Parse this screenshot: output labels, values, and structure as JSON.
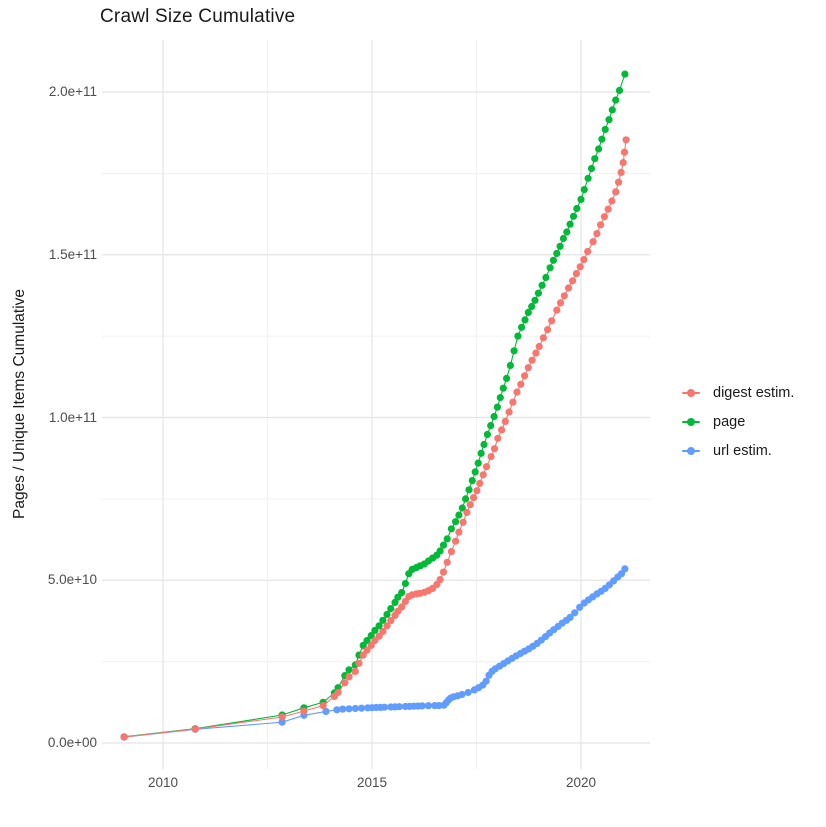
{
  "chart_data": {
    "type": "line",
    "title": "Crawl Size Cumulative",
    "xlabel": "",
    "ylabel": "Pages / Unique Items Cumulative",
    "grid": true,
    "legend_position": "right",
    "x_axis": {
      "lim": [
        2008.54,
        2021.65
      ],
      "minor_ticks": [
        2012.5,
        2017.5
      ]
    },
    "y_axis": {
      "lim_billions": [
        -8,
        216
      ],
      "unit": "1e9",
      "minor_ticks_billions": [
        25,
        75,
        125,
        175
      ]
    },
    "x_ticks": [
      {
        "value": 2010,
        "label": "2010"
      },
      {
        "value": 2015,
        "label": "2015"
      },
      {
        "value": 2020,
        "label": "2020"
      }
    ],
    "y_ticks": [
      {
        "value_billions": 0,
        "label": "0.0e+00"
      },
      {
        "value_billions": 50,
        "label": "5.0e+10"
      },
      {
        "value_billions": 100,
        "label": "1.0e+11"
      },
      {
        "value_billions": 150,
        "label": "1.5e+11"
      },
      {
        "value_billions": 200,
        "label": "2.0e+11"
      }
    ],
    "series": [
      {
        "name": "digest estim.",
        "color": "#F8766D",
        "points_year_billions": [
          [
            2009.07,
            1.85
          ],
          [
            2010.77,
            4.3
          ],
          [
            2012.85,
            8.0
          ],
          [
            2013.37,
            9.8
          ],
          [
            2013.83,
            11.5
          ],
          [
            2014.1,
            14.3
          ],
          [
            2014.19,
            15.5
          ],
          [
            2014.35,
            18.5
          ],
          [
            2014.45,
            20.3
          ],
          [
            2014.6,
            22.0
          ],
          [
            2014.69,
            24.5
          ],
          [
            2014.79,
            27.0
          ],
          [
            2014.88,
            28.5
          ],
          [
            2014.98,
            30.0
          ],
          [
            2015.07,
            31.5
          ],
          [
            2015.17,
            32.8
          ],
          [
            2015.26,
            34.3
          ],
          [
            2015.36,
            36.0
          ],
          [
            2015.45,
            37.6
          ],
          [
            2015.55,
            39.2
          ],
          [
            2015.62,
            40.5
          ],
          [
            2015.71,
            41.8
          ],
          [
            2015.8,
            43.5
          ],
          [
            2015.88,
            45.0
          ],
          [
            2015.96,
            45.5
          ],
          [
            2016.06,
            45.8
          ],
          [
            2016.15,
            46.0
          ],
          [
            2016.25,
            46.3
          ],
          [
            2016.35,
            46.8
          ],
          [
            2016.45,
            47.5
          ],
          [
            2016.55,
            48.7
          ],
          [
            2016.63,
            50.2
          ],
          [
            2016.71,
            52.5
          ],
          [
            2016.8,
            55.5
          ],
          [
            2016.9,
            58.8
          ],
          [
            2017.0,
            62.0
          ],
          [
            2017.08,
            64.8
          ],
          [
            2017.18,
            67.8
          ],
          [
            2017.27,
            70.8
          ],
          [
            2017.35,
            73.2
          ],
          [
            2017.43,
            75.4
          ],
          [
            2017.51,
            77.5
          ],
          [
            2017.58,
            79.8
          ],
          [
            2017.66,
            82.4
          ],
          [
            2017.74,
            84.9
          ],
          [
            2017.85,
            88.0
          ],
          [
            2017.93,
            90.4
          ],
          [
            2018.01,
            93.6
          ],
          [
            2018.1,
            96.2
          ],
          [
            2018.19,
            98.8
          ],
          [
            2018.28,
            101.7
          ],
          [
            2018.37,
            104.7
          ],
          [
            2018.47,
            107.8
          ],
          [
            2018.56,
            110.2
          ],
          [
            2018.65,
            112.8
          ],
          [
            2018.74,
            115.3
          ],
          [
            2018.83,
            117.6
          ],
          [
            2018.92,
            119.8
          ],
          [
            2019.0,
            121.8
          ],
          [
            2019.1,
            124.5
          ],
          [
            2019.2,
            127.0
          ],
          [
            2019.3,
            129.7
          ],
          [
            2019.42,
            133.0
          ],
          [
            2019.51,
            135.2
          ],
          [
            2019.6,
            137.4
          ],
          [
            2019.7,
            139.8
          ],
          [
            2019.8,
            142.0
          ],
          [
            2019.89,
            144.2
          ],
          [
            2019.98,
            146.3
          ],
          [
            2020.07,
            148.5
          ],
          [
            2020.16,
            151.0
          ],
          [
            2020.29,
            154.0
          ],
          [
            2020.38,
            156.5
          ],
          [
            2020.47,
            159.2
          ],
          [
            2020.56,
            161.7
          ],
          [
            2020.65,
            164.0
          ],
          [
            2020.74,
            166.5
          ],
          [
            2020.83,
            169.3
          ],
          [
            2020.9,
            172.3
          ],
          [
            2020.96,
            175.3
          ],
          [
            2021.01,
            178.3
          ],
          [
            2021.04,
            181.5
          ],
          [
            2021.08,
            185.3
          ]
        ]
      },
      {
        "name": "page",
        "color": "#00BA38",
        "points_year_billions": [
          [
            2009.07,
            1.9
          ],
          [
            2010.77,
            4.4
          ],
          [
            2012.85,
            8.6
          ],
          [
            2013.37,
            10.8
          ],
          [
            2013.83,
            12.5
          ],
          [
            2014.1,
            15.4
          ],
          [
            2014.19,
            17.0
          ],
          [
            2014.35,
            20.7
          ],
          [
            2014.45,
            22.5
          ],
          [
            2014.6,
            24.0
          ],
          [
            2014.69,
            27.0
          ],
          [
            2014.79,
            30.0
          ],
          [
            2014.88,
            31.5
          ],
          [
            2014.98,
            33.0
          ],
          [
            2015.07,
            34.6
          ],
          [
            2015.17,
            36.0
          ],
          [
            2015.26,
            37.7
          ],
          [
            2015.36,
            39.5
          ],
          [
            2015.45,
            41.3
          ],
          [
            2015.55,
            43.2
          ],
          [
            2015.62,
            44.8
          ],
          [
            2015.71,
            46.2
          ],
          [
            2015.8,
            49.0
          ],
          [
            2015.88,
            52.0
          ],
          [
            2015.96,
            53.3
          ],
          [
            2016.06,
            53.9
          ],
          [
            2016.15,
            54.4
          ],
          [
            2016.25,
            55.0
          ],
          [
            2016.35,
            55.9
          ],
          [
            2016.45,
            56.8
          ],
          [
            2016.55,
            57.7
          ],
          [
            2016.63,
            59.0
          ],
          [
            2016.71,
            60.8
          ],
          [
            2016.8,
            62.7
          ],
          [
            2016.9,
            65.8
          ],
          [
            2017.0,
            68.0
          ],
          [
            2017.08,
            70.0
          ],
          [
            2017.16,
            72.2
          ],
          [
            2017.24,
            75.0
          ],
          [
            2017.32,
            77.8
          ],
          [
            2017.4,
            80.6
          ],
          [
            2017.47,
            83.3
          ],
          [
            2017.54,
            86.0
          ],
          [
            2017.61,
            89.0
          ],
          [
            2017.68,
            91.7
          ],
          [
            2017.76,
            94.8
          ],
          [
            2017.84,
            97.5
          ],
          [
            2017.92,
            100.3
          ],
          [
            2018.0,
            103.2
          ],
          [
            2018.07,
            106.1
          ],
          [
            2018.14,
            109.0
          ],
          [
            2018.22,
            112.0
          ],
          [
            2018.31,
            116.0
          ],
          [
            2018.4,
            120.5
          ],
          [
            2018.49,
            125.0
          ],
          [
            2018.58,
            127.7
          ],
          [
            2018.66,
            130.0
          ],
          [
            2018.74,
            132.3
          ],
          [
            2018.82,
            134.1
          ],
          [
            2018.9,
            136.0
          ],
          [
            2018.98,
            138.2
          ],
          [
            2019.07,
            140.6
          ],
          [
            2019.16,
            143.0
          ],
          [
            2019.26,
            146.0
          ],
          [
            2019.34,
            148.3
          ],
          [
            2019.42,
            150.4
          ],
          [
            2019.5,
            152.6
          ],
          [
            2019.58,
            155.0
          ],
          [
            2019.66,
            157.0
          ],
          [
            2019.74,
            159.4
          ],
          [
            2019.82,
            161.8
          ],
          [
            2019.9,
            164.2
          ],
          [
            2020.0,
            167.0
          ],
          [
            2020.08,
            170.0
          ],
          [
            2020.17,
            173.5
          ],
          [
            2020.25,
            176.5
          ],
          [
            2020.33,
            179.5
          ],
          [
            2020.42,
            182.5
          ],
          [
            2020.5,
            185.5
          ],
          [
            2020.58,
            188.5
          ],
          [
            2020.67,
            191.5
          ],
          [
            2020.75,
            194.5
          ],
          [
            2020.83,
            197.5
          ],
          [
            2020.92,
            200.5
          ],
          [
            2021.05,
            205.5
          ]
        ]
      },
      {
        "name": "url estim.",
        "color": "#619CFF",
        "points_year_billions": [
          [
            2009.07,
            1.8
          ],
          [
            2010.77,
            4.2
          ],
          [
            2012.85,
            6.4
          ],
          [
            2013.37,
            8.5
          ],
          [
            2013.9,
            9.7
          ],
          [
            2014.16,
            10.2
          ],
          [
            2014.3,
            10.4
          ],
          [
            2014.45,
            10.5
          ],
          [
            2014.6,
            10.6
          ],
          [
            2014.75,
            10.7
          ],
          [
            2014.9,
            10.8
          ],
          [
            2015.0,
            10.85
          ],
          [
            2015.1,
            10.9
          ],
          [
            2015.2,
            10.95
          ],
          [
            2015.3,
            11.0
          ],
          [
            2015.45,
            11.05
          ],
          [
            2015.55,
            11.1
          ],
          [
            2015.65,
            11.15
          ],
          [
            2015.8,
            11.2
          ],
          [
            2015.9,
            11.25
          ],
          [
            2016.0,
            11.3
          ],
          [
            2016.1,
            11.35
          ],
          [
            2016.2,
            11.4
          ],
          [
            2016.35,
            11.45
          ],
          [
            2016.5,
            11.5
          ],
          [
            2016.6,
            11.5
          ],
          [
            2016.72,
            11.6
          ],
          [
            2016.78,
            12.4
          ],
          [
            2016.83,
            13.2
          ],
          [
            2016.88,
            13.8
          ],
          [
            2016.95,
            14.2
          ],
          [
            2017.05,
            14.5
          ],
          [
            2017.15,
            14.9
          ],
          [
            2017.3,
            15.5
          ],
          [
            2017.45,
            16.3
          ],
          [
            2017.55,
            17.0
          ],
          [
            2017.65,
            17.8
          ],
          [
            2017.73,
            19.0
          ],
          [
            2017.8,
            20.8
          ],
          [
            2017.87,
            22.0
          ],
          [
            2017.95,
            22.8
          ],
          [
            2018.05,
            23.6
          ],
          [
            2018.15,
            24.4
          ],
          [
            2018.25,
            25.2
          ],
          [
            2018.35,
            26.0
          ],
          [
            2018.45,
            26.8
          ],
          [
            2018.55,
            27.5
          ],
          [
            2018.65,
            28.2
          ],
          [
            2018.75,
            28.9
          ],
          [
            2018.85,
            29.7
          ],
          [
            2018.95,
            30.6
          ],
          [
            2019.05,
            31.6
          ],
          [
            2019.15,
            32.7
          ],
          [
            2019.25,
            33.8
          ],
          [
            2019.35,
            34.8
          ],
          [
            2019.45,
            35.8
          ],
          [
            2019.55,
            36.8
          ],
          [
            2019.65,
            37.7
          ],
          [
            2019.74,
            38.6
          ],
          [
            2019.85,
            40.0
          ],
          [
            2019.97,
            41.7
          ],
          [
            2020.08,
            43.0
          ],
          [
            2020.18,
            44.0
          ],
          [
            2020.28,
            44.9
          ],
          [
            2020.38,
            45.8
          ],
          [
            2020.48,
            46.6
          ],
          [
            2020.58,
            47.5
          ],
          [
            2020.68,
            48.6
          ],
          [
            2020.78,
            49.8
          ],
          [
            2020.88,
            51.0
          ],
          [
            2020.97,
            52.0
          ],
          [
            2021.05,
            53.5
          ]
        ]
      }
    ]
  }
}
